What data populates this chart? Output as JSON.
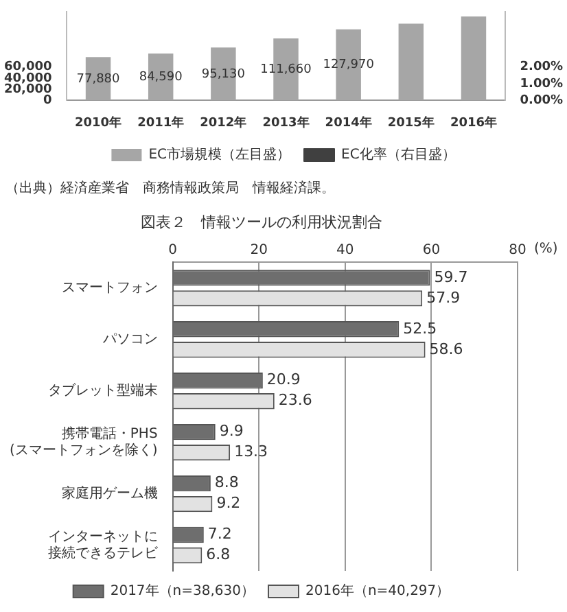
{
  "chart_data": [
    {
      "type": "bar",
      "categories": [
        "2010年",
        "2011年",
        "2012年",
        "2013年",
        "2014年",
        "2015年",
        "2016年"
      ],
      "series": [
        {
          "name": "EC市場規模（左目盛）",
          "color": "#a6a6a6",
          "values": [
            77880,
            84590,
            95130,
            111660,
            127970,
            138000,
            151000
          ],
          "value_labels": [
            "77,880",
            "84,590",
            "95,130",
            "111,660",
            "127,970",
            null,
            null
          ]
        },
        {
          "name": "EC化率（右目盛）",
          "type": "line",
          "color": "#404040",
          "values": [
            null,
            null,
            null,
            null,
            null,
            null,
            null
          ]
        }
      ],
      "ylim": [
        0,
        160000
      ],
      "yticks": [
        0,
        {
          "value": 20000,
          "label": "20,000"
        },
        {
          "value": 40000,
          "label": "40,000"
        },
        {
          "value": 60000,
          "label": "60,000"
        }
      ],
      "y2lim": [
        0,
        5.3333
      ],
      "y2ticks": [
        {
          "value": 0,
          "label": "0.00%"
        },
        {
          "value": 1,
          "label": "1.00%"
        },
        {
          "value": 2,
          "label": "2.00%"
        }
      ],
      "legend": "bottom",
      "grid": false,
      "annotations": [
        "（出典）経済産業省　商務情報政策局　情報経済課。"
      ]
    },
    {
      "type": "bar",
      "orientation": "horizontal",
      "title": "図表２　情報ツールの利用状況割合",
      "xlabel": "(%)",
      "categories": [
        "スマートフォン",
        "パソコン",
        "タブレット型端末",
        "携帯電話・PHS(スマートフォンを除く)",
        "家庭用ゲーム機",
        "インターネットに接続できるテレビ"
      ],
      "series": [
        {
          "name": "2017年（n=38,630）",
          "color": "#6e6e6e",
          "values": [
            59.7,
            52.5,
            20.9,
            9.9,
            8.8,
            7.2
          ]
        },
        {
          "name": "2016年（n=40,297）",
          "color": "#e2e2e2",
          "values": [
            57.9,
            58.6,
            23.6,
            13.3,
            9.2,
            6.8
          ]
        }
      ],
      "xlim": [
        0,
        80
      ],
      "xticks": [
        0,
        20,
        40,
        60,
        80
      ],
      "grid": "x",
      "legend": "bottom",
      "data_labels": true
    }
  ]
}
